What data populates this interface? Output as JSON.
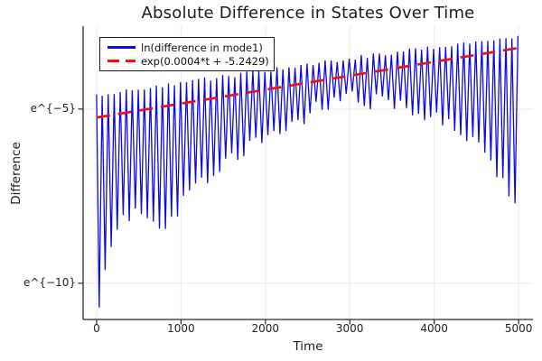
{
  "title": "Absolute Difference in States Over Time",
  "axis_labels": {
    "x": "Time",
    "y": "Difference"
  },
  "legend": {
    "entries": [
      {
        "label": "ln(difference in mode1)",
        "line": "solid",
        "color": "#0b0be0"
      },
      {
        "label": "exp(0.0004*t + -5.2429)",
        "line": "dashed",
        "color": "#ee1111"
      }
    ]
  },
  "axes": {
    "x": {
      "ticks": [
        {
          "value": 0,
          "label": "0"
        },
        {
          "value": 1000,
          "label": "1000"
        },
        {
          "value": 2000,
          "label": "2000"
        },
        {
          "value": 3000,
          "label": "3000"
        },
        {
          "value": 4000,
          "label": "4000"
        },
        {
          "value": 5000,
          "label": "5000"
        }
      ],
      "range": [
        -160,
        5170
      ]
    },
    "y": {
      "scale": "ln",
      "ticks": [
        {
          "value": -5,
          "label": "e^{−5}"
        },
        {
          "value": -10,
          "label": "e^{−10}"
        }
      ],
      "range": [
        -11.04,
        -2.62
      ]
    }
  },
  "colors": {
    "series": "#0b0be0",
    "fit": "#ee1111",
    "grid": "#ebebeb",
    "axis": "#262626",
    "text": "#1c1c1c",
    "background": "#ffffff"
  },
  "chart_data": {
    "type": "line",
    "title": "Absolute Difference in States Over Time",
    "xlabel": "Time",
    "ylabel": "Difference",
    "x_range": [
      0,
      5000
    ],
    "y_scale": "ln",
    "series": [
      {
        "name": "ln(difference in mode1)",
        "color": "#0b0be0",
        "style": "solid",
        "representation": "dense oscillation between envelopes (ln units); spikes downward every period",
        "period_t": 71.4,
        "first_valley_t": 30,
        "envelope_t": [
          0,
          40,
          100,
          180,
          260,
          350,
          480,
          620,
          760,
          900,
          1000,
          1250,
          1500,
          1750,
          2000,
          2250,
          2500,
          2850,
          3200,
          3600,
          4000,
          4300,
          4600,
          4800,
          4950,
          5000
        ],
        "upper_ln": [
          -4.58,
          -4.57,
          -4.55,
          -4.52,
          -4.5,
          -4.47,
          -4.43,
          -4.38,
          -4.33,
          -4.28,
          -4.24,
          -4.16,
          -4.07,
          -3.99,
          -3.9,
          -3.81,
          -3.73,
          -3.6,
          -3.48,
          -3.35,
          -3.22,
          -3.12,
          -3.03,
          -2.97,
          -2.92,
          -2.9
        ],
        "lower_ln": [
          -11.0,
          -10.6,
          -9.55,
          -8.95,
          -8.55,
          -8.1,
          -7.85,
          -8.2,
          -8.55,
          -8.1,
          -7.8,
          -7.1,
          -6.65,
          -6.25,
          -5.9,
          -5.5,
          -5.15,
          -4.7,
          -4.75,
          -4.9,
          -5.15,
          -5.5,
          -6.3,
          -7.0,
          -7.75,
          -7.8
        ]
      },
      {
        "name": "exp(0.0004*t + -5.2429)",
        "color": "#ee1111",
        "style": "dashed",
        "model": "exp(slope*t + intercept)",
        "slope": 0.0004,
        "intercept": -5.2429,
        "endpoints_ln": [
          -5.2429,
          -3.2429
        ]
      }
    ]
  }
}
